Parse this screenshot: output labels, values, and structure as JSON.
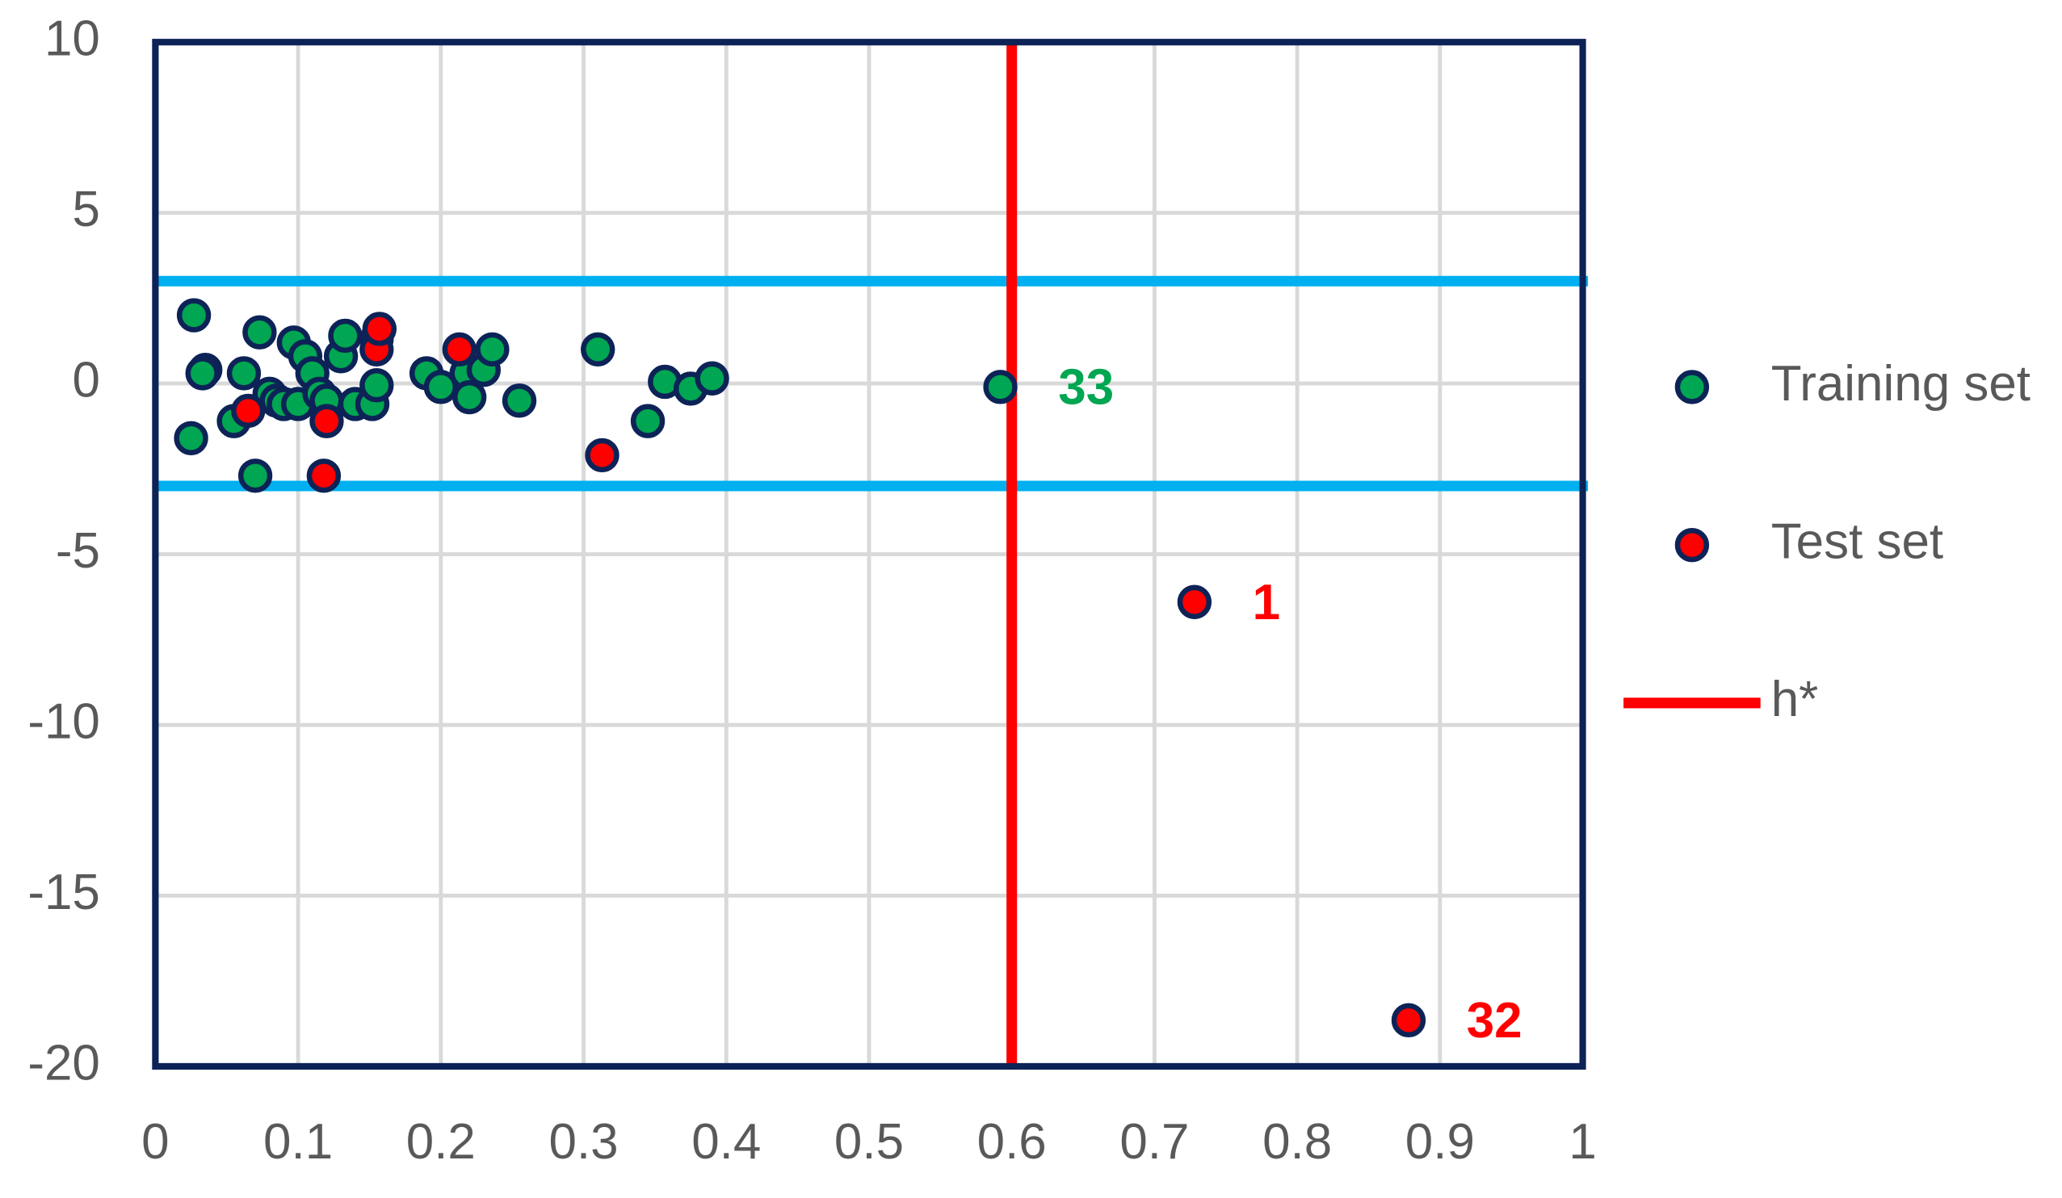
{
  "chart_data": {
    "type": "scatter",
    "xlim": [
      0,
      1
    ],
    "xticks": [
      0,
      0.1,
      0.2,
      0.3,
      0.4,
      0.5,
      0.6,
      0.7,
      0.8,
      0.9,
      1
    ],
    "ylim": [
      -20,
      10
    ],
    "yticks": [
      -20,
      -15,
      -10,
      -5,
      0,
      5,
      10
    ],
    "grid": true,
    "legend": "right",
    "series": [
      {
        "name": "Training set",
        "color": "#00a651",
        "x": [
          0.027,
          0.035,
          0.033,
          0.025,
          0.055,
          0.062,
          0.073,
          0.07,
          0.08,
          0.085,
          0.09,
          0.097,
          0.1,
          0.105,
          0.11,
          0.115,
          0.12,
          0.13,
          0.133,
          0.14,
          0.152,
          0.155,
          0.155,
          0.19,
          0.2,
          0.218,
          0.22,
          0.23,
          0.236,
          0.255,
          0.31,
          0.345,
          0.357,
          0.375,
          0.39,
          0.592
        ],
        "values": [
          2.0,
          0.4,
          0.3,
          -1.6,
          -1.1,
          0.3,
          1.5,
          -2.7,
          -0.3,
          -0.5,
          -0.6,
          1.2,
          -0.6,
          0.8,
          0.3,
          -0.3,
          -0.5,
          0.8,
          1.4,
          -0.6,
          -0.6,
          -0.05,
          1.3,
          0.3,
          -0.1,
          0.3,
          -0.4,
          0.4,
          1.0,
          -0.5,
          1.0,
          -1.1,
          0.05,
          -0.15,
          0.15,
          -0.1
        ],
        "labels": [
          null,
          null,
          null,
          null,
          null,
          null,
          null,
          null,
          null,
          null,
          null,
          null,
          null,
          null,
          null,
          null,
          null,
          null,
          null,
          null,
          null,
          null,
          null,
          null,
          null,
          null,
          null,
          null,
          null,
          null,
          null,
          null,
          null,
          null,
          null,
          "33"
        ]
      },
      {
        "name": "Test set",
        "color": "#ff0000",
        "x": [
          0.065,
          0.12,
          0.118,
          0.155,
          0.157,
          0.213,
          0.313,
          0.728,
          0.878
        ],
        "values": [
          -0.8,
          -1.1,
          -2.7,
          1.0,
          1.6,
          1.0,
          -2.1,
          -6.4,
          -18.65
        ],
        "labels": [
          null,
          null,
          null,
          null,
          null,
          null,
          null,
          "1",
          "32"
        ]
      }
    ],
    "reference_lines": [
      {
        "name": "h*",
        "color": "#ff0000",
        "value": 0.6
      }
    ],
    "limit_lines": {
      "color": "#00b0f0",
      "values": [
        3,
        -3
      ]
    }
  }
}
